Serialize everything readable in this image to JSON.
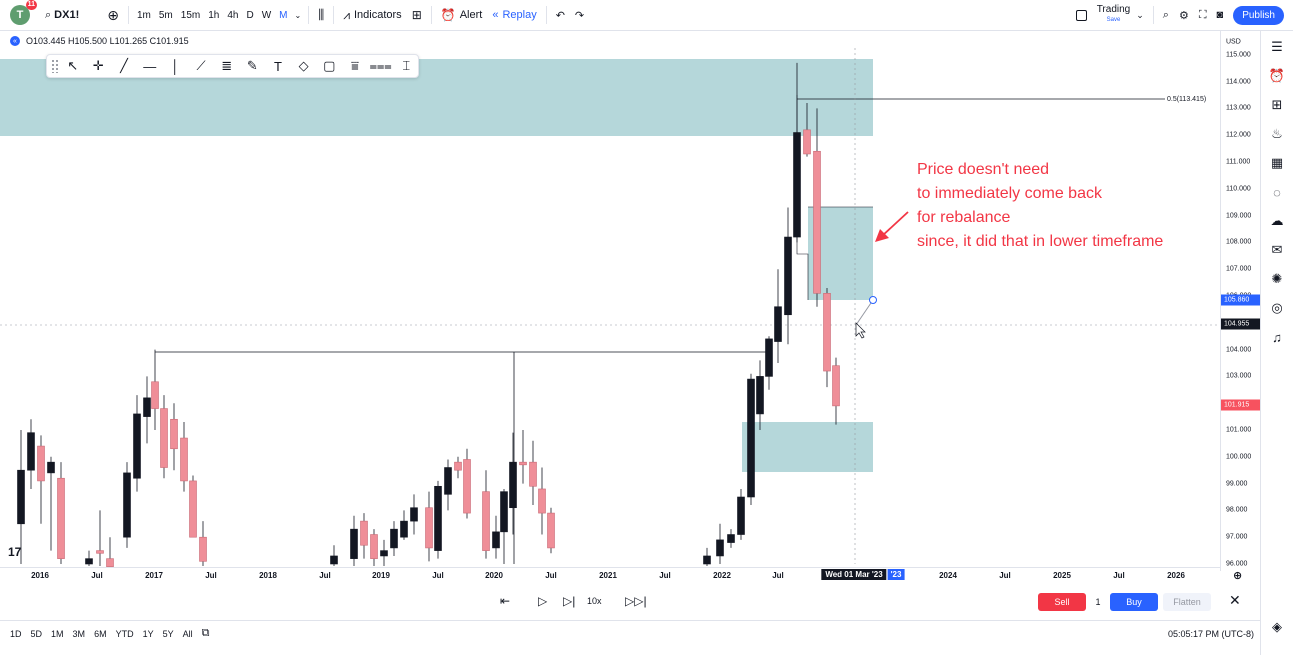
{
  "topbar": {
    "avatar_letter": "T",
    "notification_count": "11",
    "symbol": "DX1!",
    "intervals": [
      "1m",
      "5m",
      "15m",
      "1h",
      "4h",
      "D",
      "W",
      "M"
    ],
    "active_interval": "M",
    "indicators_label": "Indicators",
    "alert_label": "Alert",
    "replay_label": "Replay",
    "trading_label": "Trading",
    "trading_sub": "Save",
    "publish_label": "Publish"
  },
  "legend": {
    "ohlc": "O103.445 H105.500 L101.265 C101.915"
  },
  "price_axis": {
    "currency": "USD",
    "ticks": [
      "115.000",
      "114.000",
      "113.000",
      "112.000",
      "111.000",
      "110.000",
      "109.000",
      "108.000",
      "107.000",
      "106.000",
      "105.000",
      "104.000",
      "103.000",
      "102.000",
      "101.000",
      "100.000",
      "99.000",
      "98.000",
      "97.000",
      "96.000"
    ],
    "cursor_price": "105.860",
    "crosshair_price": "104.955",
    "last_price": "101.915"
  },
  "time_axis": {
    "labels": [
      "2016",
      "Jul",
      "2017",
      "Jul",
      "2018",
      "Jul",
      "2019",
      "Jul",
      "2020",
      "Jul",
      "2021",
      "Jul",
      "2022",
      "Jul",
      "Wed 01 Mar '23",
      "'23",
      "2024",
      "Jul",
      "2025",
      "Jul",
      "2026"
    ]
  },
  "chart_data": {
    "type": "candlestick",
    "fib_label": "0.5(113.415)",
    "annotation": [
      "Price doesn't need",
      "to immediately come back",
      "for rebalance",
      "since, it did that in lower timeframe"
    ],
    "colors": {
      "up": "#131722",
      "down": "#ef8e98",
      "zone": "#a8d0d3",
      "annotation": "#f23645"
    }
  },
  "replay": {
    "speed": "10x",
    "sell_label": "Sell",
    "quantity": "1",
    "buy_label": "Buy",
    "flatten_label": "Flatten"
  },
  "bottombar": {
    "ranges": [
      "1D",
      "5D",
      "1M",
      "3M",
      "6M",
      "YTD",
      "1Y",
      "5Y",
      "All"
    ],
    "clock": "05:05:17 PM (UTC-8)"
  }
}
